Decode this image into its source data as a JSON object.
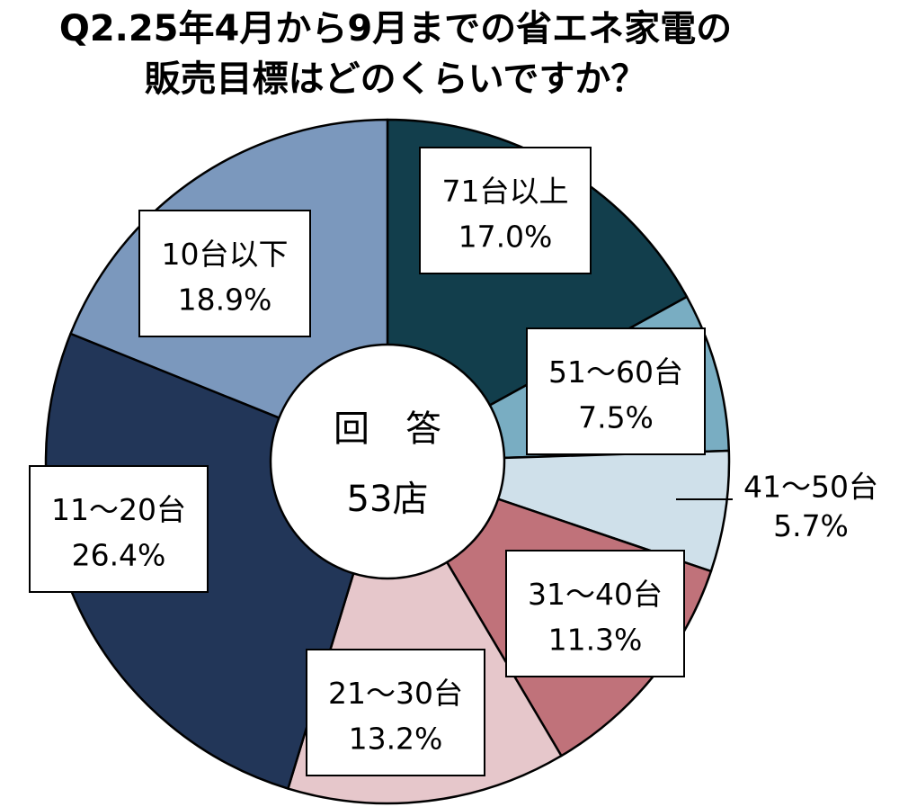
{
  "title_lines": [
    "Q2.25年4月から9月までの省エネ家電の",
    "販売目標はどのくらいですか？"
  ],
  "center": {
    "line1": "回　答",
    "line2": "53店"
  },
  "chart_data": {
    "type": "pie",
    "title": "Q2.25年4月から9月までの省エネ家電の販売目標はどのくらいですか？",
    "start": "12 o'clock",
    "direction": "clockwise",
    "donut": true,
    "slices": [
      {
        "label": "71台以上",
        "value": 17.0,
        "value_label": "17.0%",
        "color": "#123e4c"
      },
      {
        "label": "51～60台",
        "value": 7.5,
        "value_label": "7.5%",
        "color": "#79adc2"
      },
      {
        "label": "41～50台",
        "value": 5.7,
        "value_label": "5.7%",
        "color": "#cfe0ea"
      },
      {
        "label": "31～40台",
        "value": 11.3,
        "value_label": "11.3%",
        "color": "#c0727a"
      },
      {
        "label": "21～30台",
        "value": 13.2,
        "value_label": "13.2%",
        "color": "#e6c7cb"
      },
      {
        "label": "11～20台",
        "value": 26.4,
        "value_label": "26.4%",
        "color": "#223658"
      },
      {
        "label": "10台以下",
        "value": 18.9,
        "value_label": "18.9%",
        "color": "#7b98bd"
      }
    ]
  }
}
